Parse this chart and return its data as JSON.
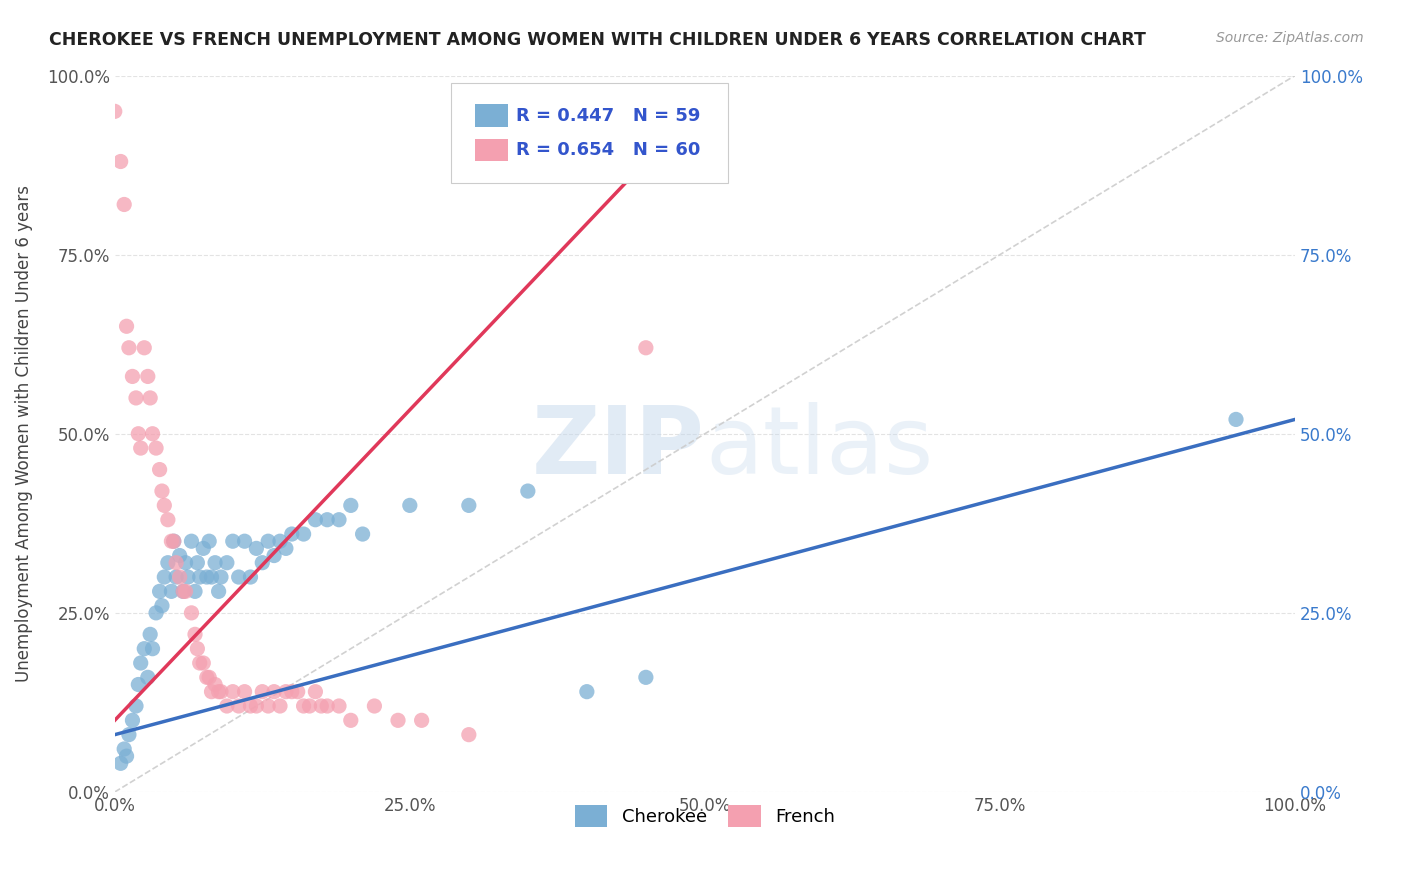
{
  "title": "CHEROKEE VS FRENCH UNEMPLOYMENT AMONG WOMEN WITH CHILDREN UNDER 6 YEARS CORRELATION CHART",
  "source": "Source: ZipAtlas.com",
  "ylabel": "Unemployment Among Women with Children Under 6 years",
  "xlim": [
    0,
    1
  ],
  "ylim": [
    0,
    1
  ],
  "xticks": [
    0,
    0.25,
    0.5,
    0.75,
    1.0
  ],
  "yticks": [
    0,
    0.25,
    0.5,
    0.75,
    1.0
  ],
  "xtick_labels": [
    "0.0%",
    "25.0%",
    "50.0%",
    "75.0%",
    "100.0%"
  ],
  "ytick_labels": [
    "0.0%",
    "25.0%",
    "50.0%",
    "75.0%",
    "100.0%"
  ],
  "right_ytick_labels": [
    "0.0%",
    "25.0%",
    "50.0%",
    "75.0%",
    "100.0%"
  ],
  "cherokee_color": "#7BAFD4",
  "french_color": "#F4A0B0",
  "cherokee_R": 0.447,
  "cherokee_N": 59,
  "french_R": 0.654,
  "french_N": 60,
  "cherokee_line_color": "#3A6EC0",
  "french_line_color": "#E0385A",
  "ref_line_color": "#CCCCCC",
  "legend_text_color": "#3355CC",
  "watermark_color": "#C8D8E8",
  "background_color": "#FFFFFF",
  "grid_color": "#E0E0E0",
  "cherokee_scatter": [
    [
      0.005,
      0.04
    ],
    [
      0.008,
      0.06
    ],
    [
      0.01,
      0.05
    ],
    [
      0.012,
      0.08
    ],
    [
      0.015,
      0.1
    ],
    [
      0.018,
      0.12
    ],
    [
      0.02,
      0.15
    ],
    [
      0.022,
      0.18
    ],
    [
      0.025,
      0.2
    ],
    [
      0.028,
      0.16
    ],
    [
      0.03,
      0.22
    ],
    [
      0.032,
      0.2
    ],
    [
      0.035,
      0.25
    ],
    [
      0.038,
      0.28
    ],
    [
      0.04,
      0.26
    ],
    [
      0.042,
      0.3
    ],
    [
      0.045,
      0.32
    ],
    [
      0.048,
      0.28
    ],
    [
      0.05,
      0.35
    ],
    [
      0.052,
      0.3
    ],
    [
      0.055,
      0.33
    ],
    [
      0.058,
      0.28
    ],
    [
      0.06,
      0.32
    ],
    [
      0.062,
      0.3
    ],
    [
      0.065,
      0.35
    ],
    [
      0.068,
      0.28
    ],
    [
      0.07,
      0.32
    ],
    [
      0.072,
      0.3
    ],
    [
      0.075,
      0.34
    ],
    [
      0.078,
      0.3
    ],
    [
      0.08,
      0.35
    ],
    [
      0.082,
      0.3
    ],
    [
      0.085,
      0.32
    ],
    [
      0.088,
      0.28
    ],
    [
      0.09,
      0.3
    ],
    [
      0.095,
      0.32
    ],
    [
      0.1,
      0.35
    ],
    [
      0.105,
      0.3
    ],
    [
      0.11,
      0.35
    ],
    [
      0.115,
      0.3
    ],
    [
      0.12,
      0.34
    ],
    [
      0.125,
      0.32
    ],
    [
      0.13,
      0.35
    ],
    [
      0.135,
      0.33
    ],
    [
      0.14,
      0.35
    ],
    [
      0.145,
      0.34
    ],
    [
      0.15,
      0.36
    ],
    [
      0.16,
      0.36
    ],
    [
      0.17,
      0.38
    ],
    [
      0.18,
      0.38
    ],
    [
      0.19,
      0.38
    ],
    [
      0.2,
      0.4
    ],
    [
      0.21,
      0.36
    ],
    [
      0.25,
      0.4
    ],
    [
      0.3,
      0.4
    ],
    [
      0.35,
      0.42
    ],
    [
      0.4,
      0.14
    ],
    [
      0.45,
      0.16
    ],
    [
      0.95,
      0.52
    ]
  ],
  "french_scatter": [
    [
      0.0,
      0.95
    ],
    [
      0.005,
      0.88
    ],
    [
      0.008,
      0.82
    ],
    [
      0.01,
      0.65
    ],
    [
      0.012,
      0.62
    ],
    [
      0.015,
      0.58
    ],
    [
      0.018,
      0.55
    ],
    [
      0.02,
      0.5
    ],
    [
      0.022,
      0.48
    ],
    [
      0.025,
      0.62
    ],
    [
      0.028,
      0.58
    ],
    [
      0.03,
      0.55
    ],
    [
      0.032,
      0.5
    ],
    [
      0.035,
      0.48
    ],
    [
      0.038,
      0.45
    ],
    [
      0.04,
      0.42
    ],
    [
      0.042,
      0.4
    ],
    [
      0.045,
      0.38
    ],
    [
      0.048,
      0.35
    ],
    [
      0.05,
      0.35
    ],
    [
      0.052,
      0.32
    ],
    [
      0.055,
      0.3
    ],
    [
      0.058,
      0.28
    ],
    [
      0.06,
      0.28
    ],
    [
      0.065,
      0.25
    ],
    [
      0.068,
      0.22
    ],
    [
      0.07,
      0.2
    ],
    [
      0.072,
      0.18
    ],
    [
      0.075,
      0.18
    ],
    [
      0.078,
      0.16
    ],
    [
      0.08,
      0.16
    ],
    [
      0.082,
      0.14
    ],
    [
      0.085,
      0.15
    ],
    [
      0.088,
      0.14
    ],
    [
      0.09,
      0.14
    ],
    [
      0.095,
      0.12
    ],
    [
      0.1,
      0.14
    ],
    [
      0.105,
      0.12
    ],
    [
      0.11,
      0.14
    ],
    [
      0.115,
      0.12
    ],
    [
      0.12,
      0.12
    ],
    [
      0.125,
      0.14
    ],
    [
      0.13,
      0.12
    ],
    [
      0.135,
      0.14
    ],
    [
      0.14,
      0.12
    ],
    [
      0.145,
      0.14
    ],
    [
      0.15,
      0.14
    ],
    [
      0.155,
      0.14
    ],
    [
      0.16,
      0.12
    ],
    [
      0.165,
      0.12
    ],
    [
      0.17,
      0.14
    ],
    [
      0.175,
      0.12
    ],
    [
      0.18,
      0.12
    ],
    [
      0.19,
      0.12
    ],
    [
      0.2,
      0.1
    ],
    [
      0.22,
      0.12
    ],
    [
      0.24,
      0.1
    ],
    [
      0.26,
      0.1
    ],
    [
      0.3,
      0.08
    ],
    [
      0.45,
      0.62
    ]
  ],
  "cherokee_line_x": [
    0.0,
    1.0
  ],
  "cherokee_line_y": [
    0.08,
    0.52
  ],
  "french_line_x": [
    0.0,
    0.45
  ],
  "french_line_y": [
    0.1,
    0.88
  ]
}
